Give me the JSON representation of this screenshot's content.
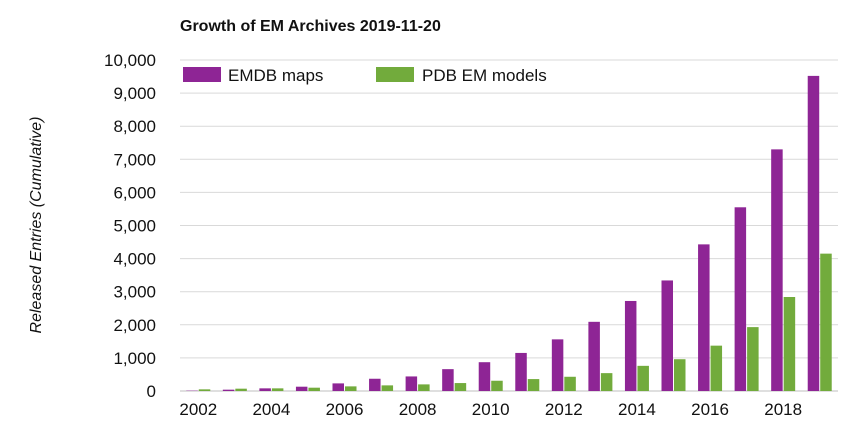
{
  "chart_data": {
    "type": "bar",
    "title": "Growth of EM Archives 2019-11-20",
    "xlabel": "",
    "ylabel": "Released Entries (Cumulative)",
    "ylim": [
      0,
      10000
    ],
    "yticks": [
      0,
      1000,
      2000,
      3000,
      4000,
      5000,
      6000,
      7000,
      8000,
      9000,
      10000
    ],
    "ytick_labels": [
      "0",
      "1,000",
      "2,000",
      "3,000",
      "4,000",
      "5,000",
      "6,000",
      "7,000",
      "8,000",
      "9,000",
      "10,000"
    ],
    "categories": [
      "2002",
      "2003",
      "2004",
      "2005",
      "2006",
      "2007",
      "2008",
      "2009",
      "2010",
      "2011",
      "2012",
      "2013",
      "2014",
      "2015",
      "2016",
      "2017",
      "2018",
      "2019"
    ],
    "xtick_labels": [
      "2002",
      "2004",
      "2006",
      "2008",
      "2010",
      "2012",
      "2014",
      "2016",
      "2018"
    ],
    "grid": true,
    "legend_position": "top-left",
    "series": [
      {
        "name": "EMDB maps",
        "color": "#8e2595",
        "values": [
          10,
          40,
          80,
          130,
          230,
          370,
          440,
          660,
          870,
          1150,
          1560,
          2090,
          2720,
          3340,
          4430,
          5550,
          7300,
          9520
        ]
      },
      {
        "name": "PDB EM models",
        "color": "#72ab3c",
        "values": [
          50,
          70,
          80,
          100,
          140,
          170,
          200,
          240,
          310,
          360,
          430,
          540,
          760,
          960,
          1370,
          1930,
          2840,
          4150
        ]
      }
    ]
  }
}
